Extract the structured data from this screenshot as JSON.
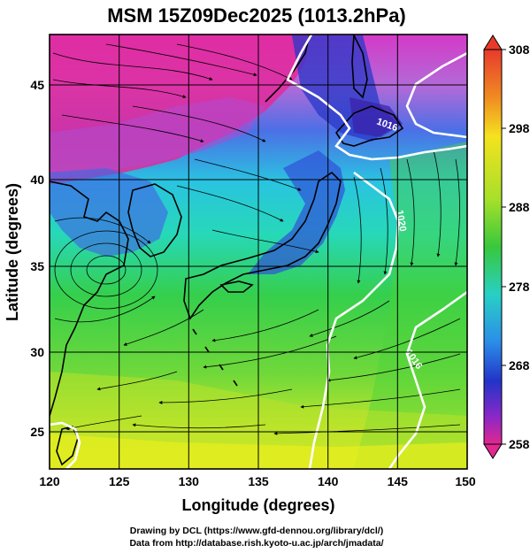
{
  "title": "MSM 15Z09Dec2025 (1013.2hPa)",
  "x_axis": {
    "label": "Longitude (degrees)",
    "ticks": [
      "120",
      "125",
      "130",
      "135",
      "140",
      "145",
      "150"
    ],
    "range": [
      120,
      150
    ]
  },
  "y_axis": {
    "label": "Latitude  (degrees)",
    "ticks": [
      "25",
      "30",
      "35",
      "40",
      "45"
    ],
    "range": [
      22.4,
      47.6
    ]
  },
  "colorbar": {
    "ticks": [
      "308",
      "298",
      "288",
      "278",
      "268",
      "258"
    ],
    "min": 258,
    "max": 308
  },
  "isolines": [
    "1016",
    "1020",
    "1016"
  ],
  "credits": {
    "line1": "Drawing by DCL (https://www.gfd-dennou.org/library/dcl/)",
    "line2": "Data from http://database.rish.kyoto-u.ac.jp/arch/jmadata/"
  },
  "colors": {
    "cold": "#e0208c",
    "cool": "#2a55e0",
    "mid": "#2ad6c8",
    "warm": "#35c84a",
    "hot": "#f0ef1a",
    "coast": "#000000",
    "isobar": "#ffffff"
  }
}
